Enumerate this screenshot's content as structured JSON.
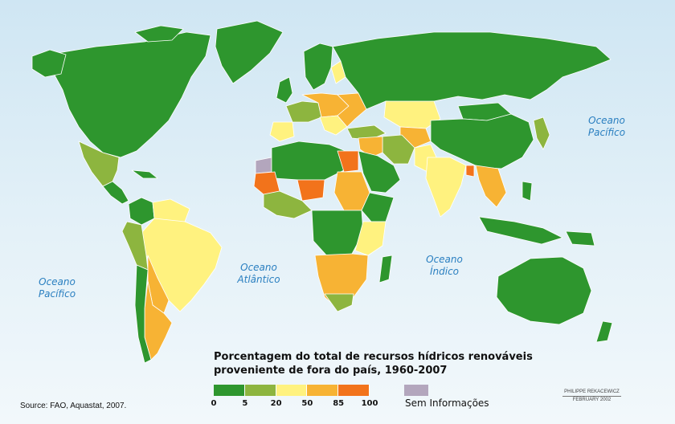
{
  "title_line1": "Porcentagem do total de recursos hídricos renováveis",
  "title_line2": "proveniente de fora do país, 1960-2007",
  "source": "Source: FAO, Aquastat, 2007.",
  "credit": {
    "author": "PHILIPPE REKACEWICZ",
    "date": "FEBRUARY 2002"
  },
  "oceans": {
    "pacific_east": {
      "line1": "Oceano",
      "line2": "Pacífico"
    },
    "pacific_west": {
      "line1": "Oceano",
      "line2": "Pacífico"
    },
    "atlantic": {
      "line1": "Oceano",
      "line2": "Atlântico"
    },
    "indian": {
      "line1": "Oceano",
      "line2": "Índico"
    }
  },
  "legend": {
    "classes": [
      {
        "from": 0,
        "to": 5,
        "color": "#2e962e"
      },
      {
        "from": 5,
        "to": 20,
        "color": "#8db53f"
      },
      {
        "from": 20,
        "to": 50,
        "color": "#fff27f"
      },
      {
        "from": 50,
        "to": 85,
        "color": "#f7b334"
      },
      {
        "from": 85,
        "to": 100,
        "color": "#f2731b"
      }
    ],
    "ticks": [
      "0",
      "5",
      "20",
      "50",
      "85",
      "100"
    ],
    "no_data": {
      "label": "Sem Informações",
      "color": "#b3a6bd"
    }
  },
  "colors": {
    "land_default": "#2e962e",
    "border": "#ffffff",
    "water": "#d6ebf6"
  }
}
